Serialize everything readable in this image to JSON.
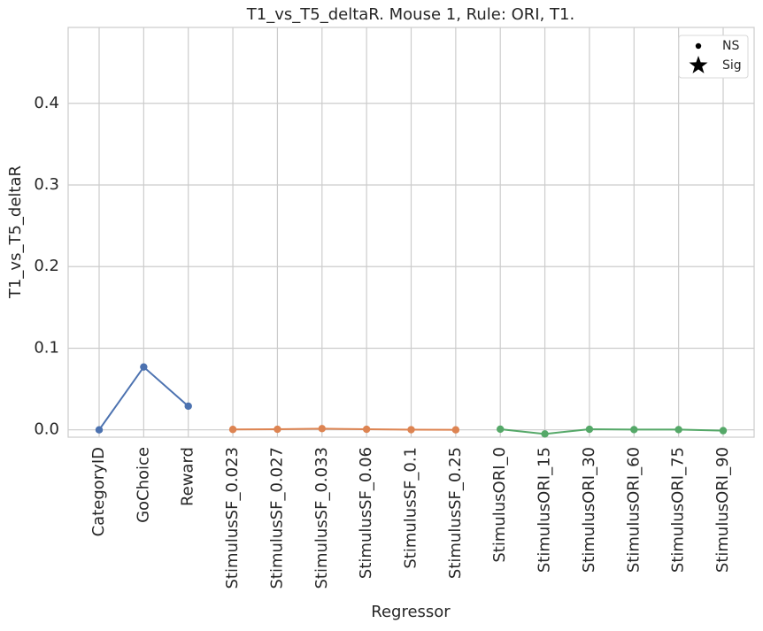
{
  "chart_data": {
    "type": "line",
    "title": "T1_vs_T5_deltaR. Mouse 1, Rule: ORI, T1.",
    "xlabel": "Regressor",
    "ylabel": "T1_vs_T5_deltaR",
    "categories": [
      "CategoryID",
      "GoChoice",
      "Reward",
      "StimulusSF_0.023",
      "StimulusSF_0.027",
      "StimulusSF_0.033",
      "StimulusSF_0.06",
      "StimulusSF_0.1",
      "StimulusSF_0.25",
      "StimulusORI_0",
      "StimulusORI_15",
      "StimulusORI_30",
      "StimulusORI_60",
      "StimulusORI_75",
      "StimulusORI_90"
    ],
    "series": [
      {
        "color": "#4c72b0",
        "values": [
          0,
          0.077,
          0.029,
          null,
          null,
          null,
          null,
          null,
          null,
          null,
          null,
          null,
          null,
          null,
          null
        ]
      },
      {
        "color": "#dd8452",
        "values": [
          null,
          null,
          null,
          0.0005,
          0.0007,
          0.0015,
          0.0007,
          0.0002,
          0,
          null,
          null,
          null,
          null,
          null,
          null
        ]
      },
      {
        "color": "#55a868",
        "values": [
          null,
          null,
          null,
          null,
          null,
          null,
          null,
          null,
          null,
          0.0008,
          -0.005,
          0.0007,
          0.0003,
          0.0003,
          -0.001
        ]
      }
    ],
    "ylim": [
      -0.009,
      0.493
    ],
    "yticks": [
      {
        "value": 0,
        "label": "0.0"
      },
      0.1,
      0.2,
      0.3,
      0.4
    ],
    "grid": true,
    "legend": {
      "position": "upper right",
      "entries": [
        {
          "label": "NS",
          "marker": "dot"
        },
        {
          "label": "Sig",
          "marker": "star"
        }
      ]
    }
  }
}
